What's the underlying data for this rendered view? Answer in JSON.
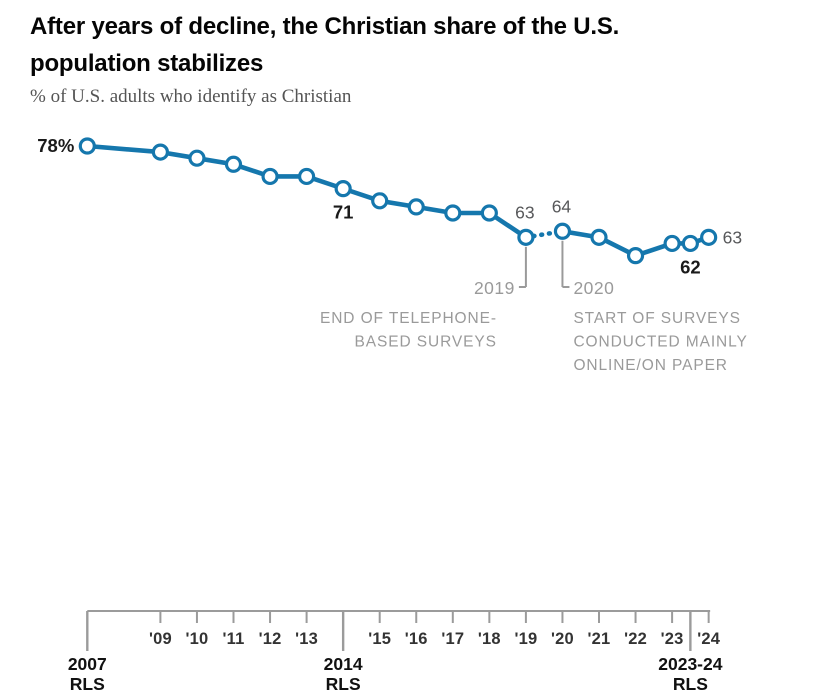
{
  "header": {
    "title": "After years of decline, the Christian share of the U.S. population stabilizes",
    "subtitle": "% of U.S. adults who identify as Christian"
  },
  "chart_data": {
    "type": "line",
    "title": "After years of decline, the Christian share of the U.S. population stabilizes",
    "subtitle": "% of U.S. adults who identify as Christian",
    "series": [
      {
        "name": "Christian share of U.S. adults (%)",
        "x": [
          2007,
          2009,
          2010,
          2011,
          2012,
          2013,
          2014,
          2015,
          2016,
          2017,
          2018,
          2019,
          2020,
          2021,
          2022,
          2023,
          2023.5,
          2024
        ],
        "values": [
          78,
          77,
          76,
          75,
          73,
          73,
          71,
          69,
          68,
          67,
          67,
          63,
          64,
          63,
          60,
          62,
          62,
          63
        ]
      }
    ],
    "xlim": [
      2007,
      2024
    ],
    "grid": false,
    "legend": "none",
    "dotted_segment_between": [
      2019,
      2020
    ],
    "point_labels": [
      {
        "x": 2007,
        "text": "78%",
        "style": "bold",
        "placement": "left"
      },
      {
        "x": 2014,
        "text": "71",
        "style": "bold",
        "placement": "below"
      },
      {
        "x": 2019,
        "text": "63",
        "style": "gray",
        "placement": "above"
      },
      {
        "x": 2020,
        "text": "64",
        "style": "gray",
        "placement": "above"
      },
      {
        "x": 2023.5,
        "text": "62",
        "style": "bold",
        "placement": "below"
      },
      {
        "x": 2024,
        "text": "63",
        "style": "gray",
        "placement": "right"
      }
    ],
    "annotations": [
      {
        "anchor_x": 2019,
        "side": "left",
        "year_label": "2019",
        "lines": [
          "END OF TELEPHONE-",
          "BASED SURVEYS"
        ]
      },
      {
        "anchor_x": 2020,
        "side": "right",
        "year_label": "2020",
        "lines": [
          "START OF SURVEYS",
          "CONDUCTED MAINLY",
          "ONLINE/ON PAPER"
        ]
      }
    ],
    "x_axis": {
      "minor_ticks": [
        {
          "year": 2009,
          "label": "'09"
        },
        {
          "year": 2010,
          "label": "'10"
        },
        {
          "year": 2011,
          "label": "'11"
        },
        {
          "year": 2012,
          "label": "'12"
        },
        {
          "year": 2013,
          "label": "'13"
        },
        {
          "year": 2015,
          "label": "'15"
        },
        {
          "year": 2016,
          "label": "'16"
        },
        {
          "year": 2017,
          "label": "'17"
        },
        {
          "year": 2018,
          "label": "'18"
        },
        {
          "year": 2019,
          "label": "'19"
        },
        {
          "year": 2020,
          "label": "'20"
        },
        {
          "year": 2021,
          "label": "'21"
        },
        {
          "year": 2022,
          "label": "'22"
        },
        {
          "year": 2023,
          "label": "'23"
        },
        {
          "year": 2024,
          "label": "'24"
        }
      ],
      "major_ticks": [
        {
          "year": 2007,
          "label_line1": "2007",
          "label_line2": "RLS"
        },
        {
          "year": 2014,
          "label_line1": "2014",
          "label_line2": "RLS"
        },
        {
          "year": 2023.5,
          "label_line1": "2023-24",
          "label_line2": "RLS"
        }
      ]
    }
  },
  "colors": {
    "line_blue": "#1577ad",
    "point_fill": "#ffffff",
    "label_black": "#1a1a1a",
    "value_gray": "#57585a",
    "annotation_gray": "#9a9a9a",
    "axis_gray": "#9b9b9b",
    "tick_label": "#333333",
    "background": "#ffffff"
  }
}
